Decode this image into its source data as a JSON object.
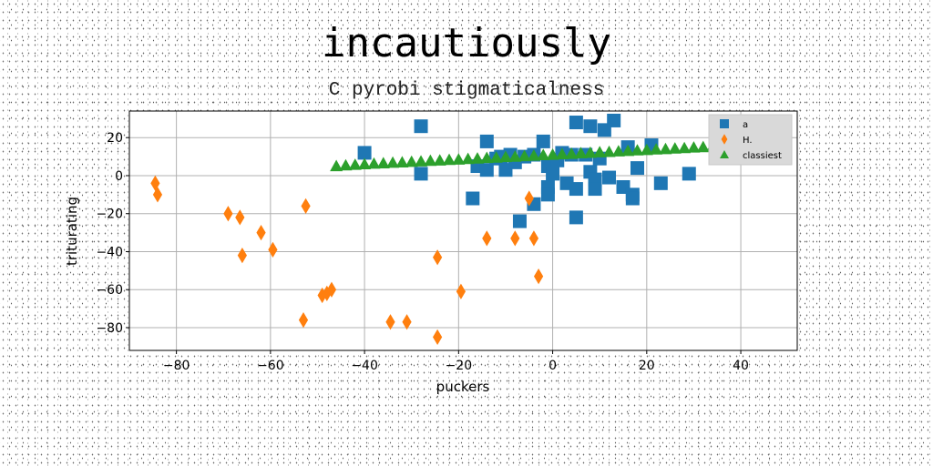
{
  "chart_data": {
    "type": "scatter",
    "title": "incautiously",
    "subtitle": "C pyrobi stigmaticalness",
    "xlabel": "puckers",
    "ylabel": "triturating",
    "xlim": [
      -90,
      52
    ],
    "ylim": [
      -92,
      34
    ],
    "xticks": [
      -80,
      -60,
      -40,
      -20,
      0,
      20,
      40
    ],
    "yticks": [
      -80,
      -60,
      -40,
      -20,
      0,
      20
    ],
    "grid": true,
    "legend_position": "top-right",
    "series": [
      {
        "name": "a",
        "marker": "square",
        "color": "#1f77b4",
        "points": [
          [
            -40,
            12
          ],
          [
            -28,
            26
          ],
          [
            -28,
            1
          ],
          [
            -17,
            -12
          ],
          [
            -16,
            5
          ],
          [
            -14,
            18
          ],
          [
            -14,
            3
          ],
          [
            -12,
            9
          ],
          [
            -11,
            10
          ],
          [
            -10,
            3
          ],
          [
            -9,
            11
          ],
          [
            -8,
            7
          ],
          [
            -7,
            -24
          ],
          [
            -6,
            10
          ],
          [
            -4,
            11
          ],
          [
            -4,
            -15
          ],
          [
            -2,
            18
          ],
          [
            -1,
            5
          ],
          [
            -1,
            -6
          ],
          [
            -1,
            -10
          ],
          [
            0,
            1
          ],
          [
            1,
            8
          ],
          [
            2,
            12
          ],
          [
            3,
            -4
          ],
          [
            4,
            11
          ],
          [
            5,
            -7
          ],
          [
            5,
            -22
          ],
          [
            5,
            28
          ],
          [
            7,
            11
          ],
          [
            8,
            2
          ],
          [
            8,
            26
          ],
          [
            9,
            -2
          ],
          [
            9,
            -7
          ],
          [
            10,
            9
          ],
          [
            11,
            24
          ],
          [
            12,
            -1
          ],
          [
            13,
            29
          ],
          [
            15,
            -6
          ],
          [
            16,
            15
          ],
          [
            17,
            -10
          ],
          [
            17,
            -12
          ],
          [
            18,
            4
          ],
          [
            21,
            16
          ],
          [
            23,
            -4
          ],
          [
            29,
            1
          ]
        ]
      },
      {
        "name": "H.",
        "marker": "diamond",
        "color": "#ff7f0e",
        "points": [
          [
            -84.5,
            -4
          ],
          [
            -84,
            -10
          ],
          [
            -69,
            -20
          ],
          [
            -66.5,
            -22
          ],
          [
            -66,
            -42
          ],
          [
            -62,
            -30
          ],
          [
            -59.5,
            -39
          ],
          [
            -52.5,
            -16
          ],
          [
            -53,
            -76
          ],
          [
            -49,
            -63
          ],
          [
            -48,
            -62
          ],
          [
            -47,
            -60
          ],
          [
            -34.5,
            -77
          ],
          [
            -31,
            -77
          ],
          [
            -24.5,
            -43
          ],
          [
            -24.5,
            -85
          ],
          [
            -19.5,
            -61
          ],
          [
            -14,
            -33
          ],
          [
            -8,
            -33
          ],
          [
            -5,
            -12
          ],
          [
            -4,
            -33
          ],
          [
            -3,
            -53
          ]
        ]
      },
      {
        "name": "classiest",
        "marker": "triangle",
        "color": "#2ca02c",
        "points": [
          [
            -46,
            5.0
          ],
          [
            -44,
            5.4
          ],
          [
            -42,
            5.7
          ],
          [
            -40,
            6.0
          ],
          [
            -38,
            6.3
          ],
          [
            -36,
            6.5
          ],
          [
            -34,
            6.8
          ],
          [
            -32,
            7.0
          ],
          [
            -30,
            7.3
          ],
          [
            -28,
            7.5
          ],
          [
            -26,
            7.8
          ],
          [
            -24,
            8.0
          ],
          [
            -22,
            8.3
          ],
          [
            -20,
            8.5
          ],
          [
            -18,
            8.8
          ],
          [
            -16,
            9.0
          ],
          [
            -14,
            9.3
          ],
          [
            -12,
            9.5
          ],
          [
            -10,
            9.8
          ],
          [
            -8,
            10.0
          ],
          [
            -6,
            10.3
          ],
          [
            -4,
            10.5
          ],
          [
            -2,
            10.8
          ],
          [
            0,
            11.0
          ],
          [
            2,
            11.3
          ],
          [
            4,
            11.5
          ],
          [
            6,
            11.8
          ],
          [
            8,
            12.0
          ],
          [
            10,
            12.3
          ],
          [
            12,
            12.5
          ],
          [
            14,
            12.8
          ],
          [
            16,
            13.0
          ],
          [
            18,
            13.3
          ],
          [
            20,
            13.5
          ],
          [
            22,
            13.8
          ],
          [
            24,
            14.0
          ],
          [
            26,
            14.3
          ],
          [
            28,
            14.5
          ],
          [
            30,
            14.8
          ],
          [
            32,
            15.0
          ],
          [
            34,
            15.3
          ],
          [
            36,
            15.5
          ],
          [
            38,
            15.8
          ],
          [
            40,
            16.0
          ],
          [
            42,
            16.3
          ],
          [
            44,
            16.5
          ],
          [
            46,
            16.8
          ]
        ]
      }
    ]
  }
}
